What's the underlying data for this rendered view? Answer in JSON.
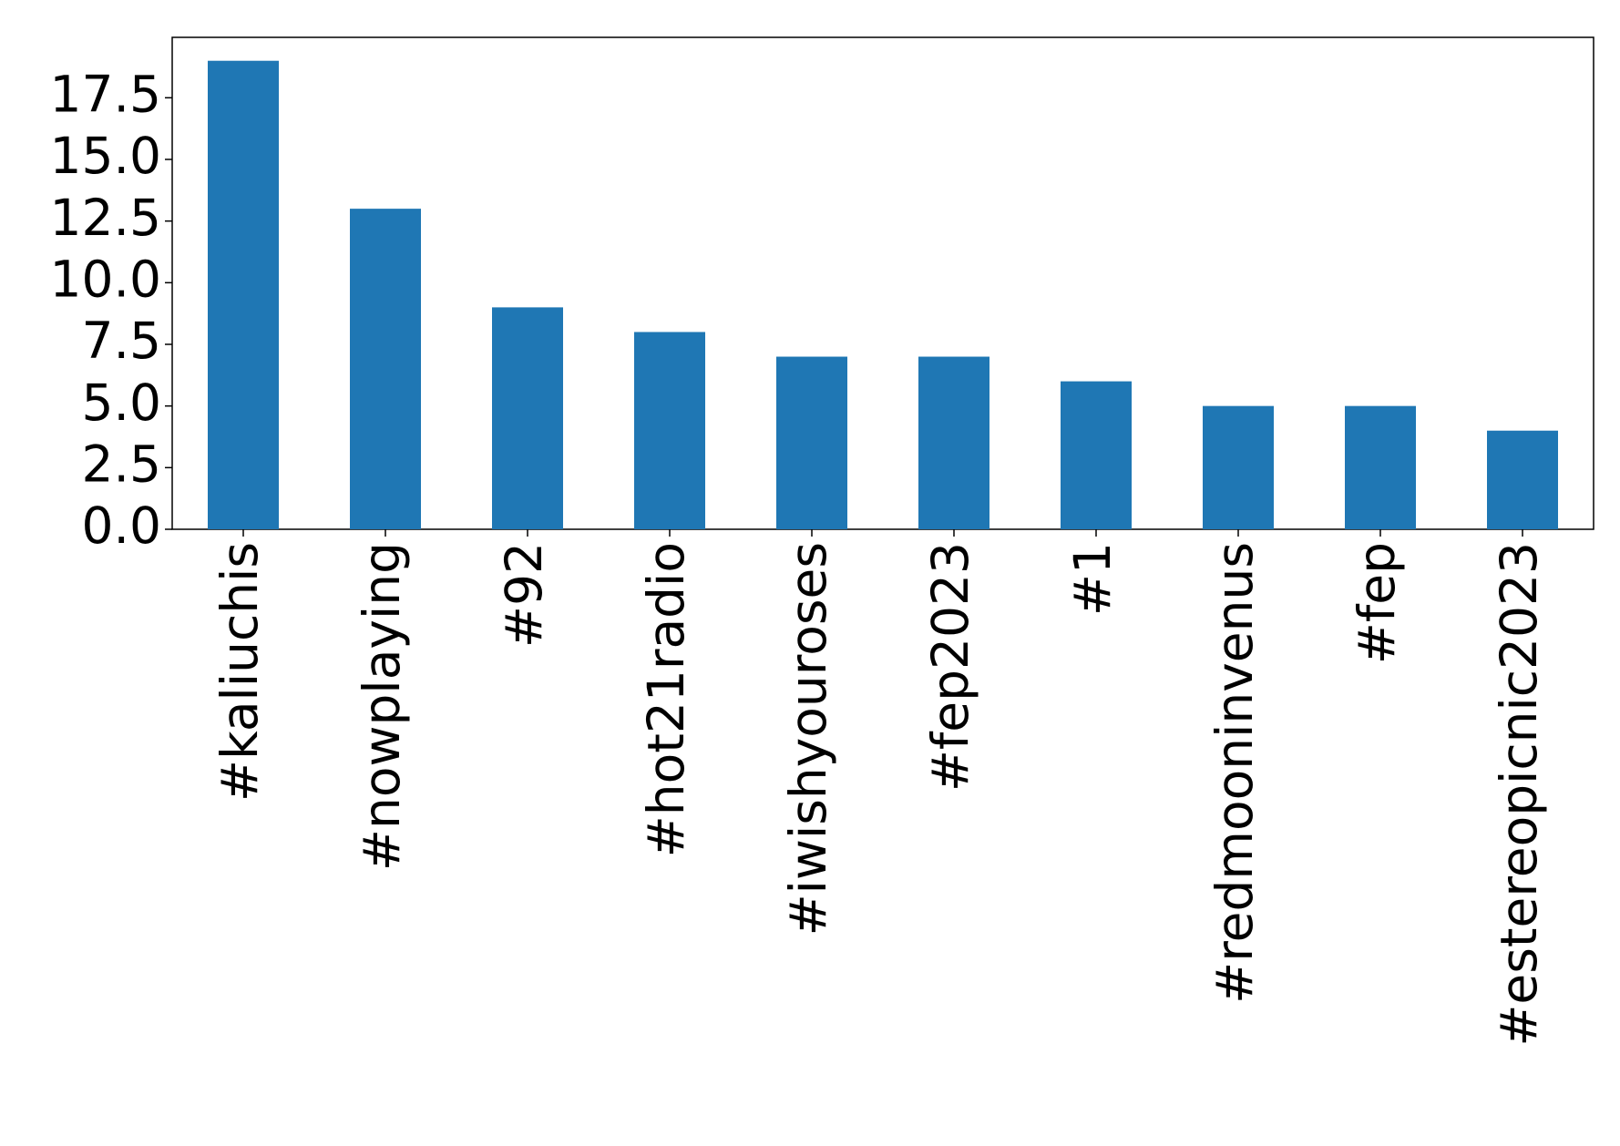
{
  "chart_data": {
    "type": "bar",
    "categories": [
      "#kaliuchis",
      "#nowplaying",
      "#92",
      "#hot21radio",
      "#iwishyouroses",
      "#fep2023",
      "#1",
      "#redmooninvenus",
      "#fep",
      "#estereopicnic2023"
    ],
    "values": [
      19,
      13,
      9,
      8,
      7,
      7,
      6,
      5,
      5,
      4
    ],
    "color": "#1f77b4",
    "ylim": [
      0,
      19.95
    ],
    "yticks": [
      {
        "value": 0,
        "label": "0.0"
      },
      {
        "value": 2.5,
        "label": "2.5"
      },
      {
        "value": 5,
        "label": "5.0"
      },
      {
        "value": 7.5,
        "label": "7.5"
      },
      {
        "value": 10,
        "label": "10.0"
      },
      {
        "value": 12.5,
        "label": "12.5"
      },
      {
        "value": 15,
        "label": "15.0"
      },
      {
        "value": 17.5,
        "label": "17.5"
      }
    ],
    "grid": false
  }
}
